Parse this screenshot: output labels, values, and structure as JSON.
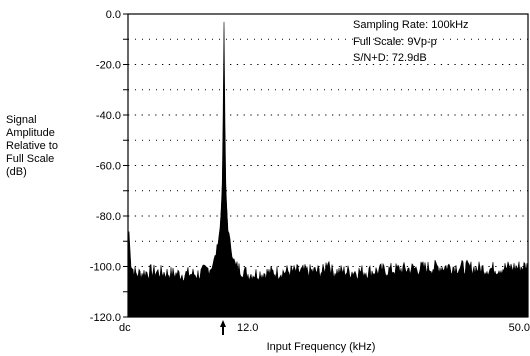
{
  "chart_data": {
    "type": "line",
    "title": "",
    "ylabel_lines": [
      "Signal",
      "Amplitude",
      "Relative to",
      "Full Scale",
      "(dB)"
    ],
    "xlabel": "Input Frequency (kHz)",
    "ylim": [
      -120,
      0
    ],
    "xlim": [
      0,
      50
    ],
    "yticks": [
      0,
      -20,
      -40,
      -60,
      -80,
      -100,
      -120
    ],
    "ytick_labels": [
      "0.0",
      "-20.0",
      "-40.0",
      "-60.0",
      "-80.0",
      "-100.0",
      "-120.0"
    ],
    "xtick_labels": [
      {
        "x": 0,
        "label": "dc"
      },
      {
        "x": 12,
        "label": "12.0"
      },
      {
        "x": 50,
        "label": "50.0"
      }
    ],
    "grid": "dotted horizontal",
    "annotations": [
      "Sampling Rate:  100kHz",
      "Full Scale:  9Vp-p",
      "S/N+D: 72.9dB"
    ],
    "marker": {
      "x": 12,
      "symbol": "up-arrow"
    },
    "noise_floor_db": -103,
    "series": [
      {
        "fill": "#000000",
        "x": [
          0,
          0.1,
          0.4,
          1,
          3,
          6,
          9,
          10.5,
          11,
          11.5,
          11.8,
          12,
          12.2,
          12.5,
          13,
          13.5,
          15,
          20,
          24.5,
          25,
          25.5,
          30,
          35,
          40,
          45,
          50
        ],
        "y": [
          -90,
          -85,
          -100,
          -103,
          -102,
          -103,
          -103,
          -100,
          -95,
          -85,
          -70,
          -3,
          -70,
          -85,
          -95,
          -100,
          -103,
          -102,
          -102,
          -97,
          -102,
          -102,
          -101,
          -100,
          -101,
          -100
        ]
      }
    ]
  }
}
